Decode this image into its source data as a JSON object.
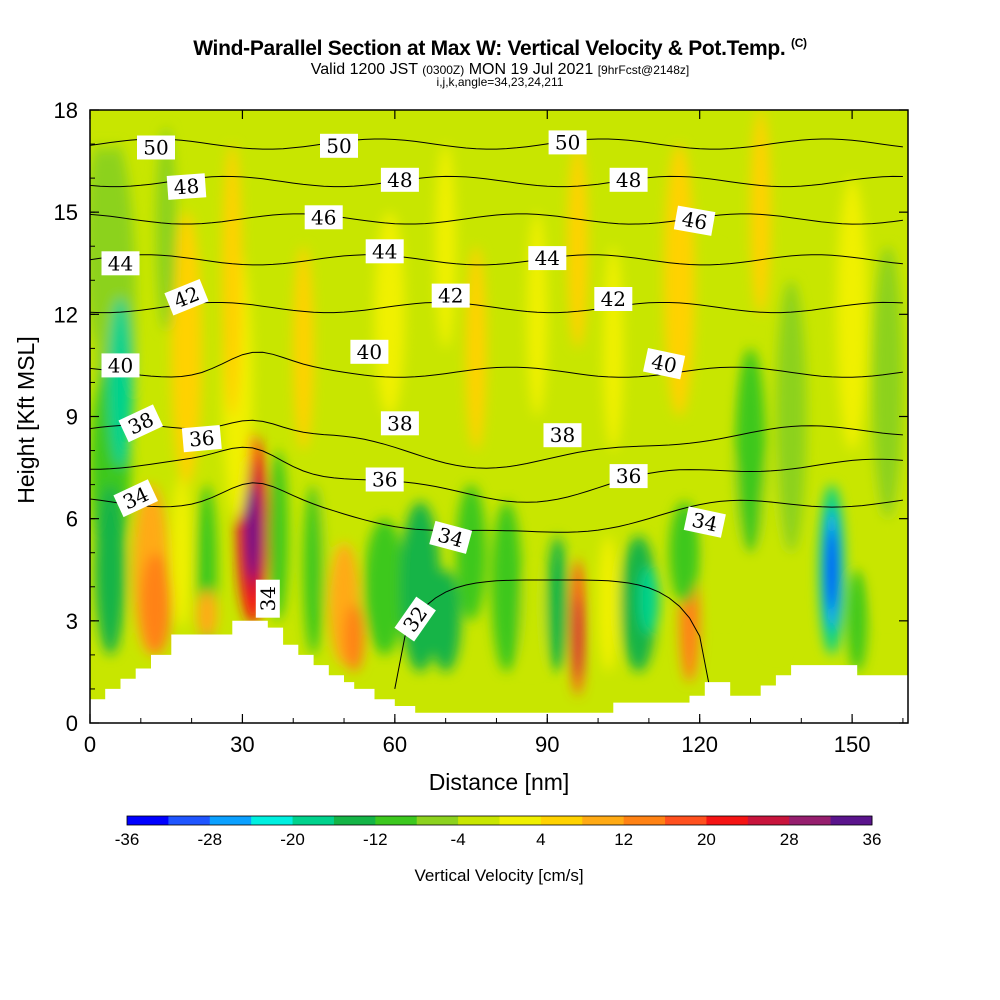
{
  "header": {
    "title": "Wind-Parallel Section at Max W: Vertical Velocity & Pot.Temp.",
    "copyright": "(C)",
    "valid_prefix": "Valid 1200 JST",
    "valid_utc": "(0300Z)",
    "valid_date": "MON 19 Jul 2021",
    "forecast": "[9hrFcst@2148z]",
    "indices": "i,j,k,angle=34,23,24,211"
  },
  "chart_data": {
    "type": "heatmap",
    "xlabel": "Distance [nm]",
    "ylabel": "Height [Kft MSL]",
    "xlim": [
      0,
      161
    ],
    "ylim": [
      0,
      18
    ],
    "xticks": [
      0,
      30,
      60,
      90,
      120,
      150
    ],
    "yticks": [
      0,
      3,
      6,
      9,
      12,
      15,
      18
    ],
    "colorbar": {
      "label": "Vertical Velocity [cm/s]",
      "ticks": [
        -36,
        -28,
        -20,
        -12,
        -4,
        4,
        12,
        20,
        28,
        36
      ],
      "colors": [
        "#0000ff",
        "#1f55ff",
        "#0aa0ff",
        "#00f0e0",
        "#00d28c",
        "#14b446",
        "#3cc81e",
        "#8cd21e",
        "#c8e600",
        "#f0f000",
        "#ffd200",
        "#ffaa14",
        "#ff8214",
        "#ff501e",
        "#f51414",
        "#c8143c",
        "#961e6e",
        "#5a148c"
      ]
    },
    "terrain_kft": [
      [
        0,
        0.7
      ],
      [
        3,
        0.7
      ],
      [
        3,
        1
      ],
      [
        6,
        1
      ],
      [
        6,
        1.3
      ],
      [
        9,
        1.3
      ],
      [
        9,
        1.6
      ],
      [
        12,
        1.6
      ],
      [
        12,
        2
      ],
      [
        16,
        2
      ],
      [
        16,
        2.6
      ],
      [
        28,
        2.6
      ],
      [
        28,
        3
      ],
      [
        35,
        3
      ],
      [
        35,
        2.8
      ],
      [
        38,
        2.8
      ],
      [
        38,
        2.3
      ],
      [
        41,
        2.3
      ],
      [
        41,
        2
      ],
      [
        44,
        2
      ],
      [
        44,
        1.7
      ],
      [
        47,
        1.7
      ],
      [
        47,
        1.4
      ],
      [
        50,
        1.4
      ],
      [
        50,
        1.2
      ],
      [
        52,
        1.2
      ],
      [
        52,
        1.0
      ],
      [
        56,
        1.0
      ],
      [
        56,
        0.7
      ],
      [
        60,
        0.7
      ],
      [
        60,
        0.5
      ],
      [
        64,
        0.5
      ],
      [
        64,
        0.3
      ],
      [
        103,
        0.3
      ],
      [
        103,
        0.6
      ],
      [
        118,
        0.6
      ],
      [
        118,
        0.8
      ],
      [
        121,
        0.8
      ],
      [
        121,
        1.2
      ],
      [
        126,
        1.2
      ],
      [
        126,
        0.8
      ],
      [
        132,
        0.8
      ],
      [
        132,
        1.1
      ],
      [
        135,
        1.1
      ],
      [
        135,
        1.4
      ],
      [
        138,
        1.4
      ],
      [
        138,
        1.7
      ],
      [
        151,
        1.7
      ],
      [
        151,
        1.4
      ],
      [
        161,
        1.4
      ]
    ],
    "theta_contours": [
      32,
      34,
      36,
      38,
      40,
      42,
      44,
      46,
      48,
      50
    ],
    "contour_labels": [
      {
        "text": "50",
        "x": 13,
        "y": 16.9,
        "angle": 0
      },
      {
        "text": "50",
        "x": 49,
        "y": 16.95,
        "angle": 0
      },
      {
        "text": "50",
        "x": 94,
        "y": 17.05,
        "angle": 0
      },
      {
        "text": "48",
        "x": 19,
        "y": 15.75,
        "angle": -4
      },
      {
        "text": "48",
        "x": 61,
        "y": 15.95,
        "angle": 0
      },
      {
        "text": "48",
        "x": 106,
        "y": 15.95,
        "angle": 0
      },
      {
        "text": "46",
        "x": 46,
        "y": 14.85,
        "angle": 0
      },
      {
        "text": "46",
        "x": 119,
        "y": 14.75,
        "angle": 10
      },
      {
        "text": "44",
        "x": 6,
        "y": 13.5,
        "angle": 0
      },
      {
        "text": "44",
        "x": 58,
        "y": 13.85,
        "angle": 0
      },
      {
        "text": "44",
        "x": 90,
        "y": 13.65,
        "angle": 0
      },
      {
        "text": "42",
        "x": 19,
        "y": 12.5,
        "angle": -22
      },
      {
        "text": "42",
        "x": 71,
        "y": 12.55,
        "angle": 0
      },
      {
        "text": "42",
        "x": 103,
        "y": 12.45,
        "angle": 0
      },
      {
        "text": "40",
        "x": 6,
        "y": 10.5,
        "angle": 0
      },
      {
        "text": "40",
        "x": 55,
        "y": 10.9,
        "angle": 0
      },
      {
        "text": "40",
        "x": 113,
        "y": 10.55,
        "angle": 12
      },
      {
        "text": "38",
        "x": 10,
        "y": 8.8,
        "angle": -25
      },
      {
        "text": "38",
        "x": 61,
        "y": 8.8,
        "angle": 0
      },
      {
        "text": "38",
        "x": 93,
        "y": 8.45,
        "angle": 0
      },
      {
        "text": "36",
        "x": 22,
        "y": 8.35,
        "angle": -5
      },
      {
        "text": "36",
        "x": 58,
        "y": 7.15,
        "angle": 0
      },
      {
        "text": "36",
        "x": 106,
        "y": 7.25,
        "angle": 0
      },
      {
        "text": "34",
        "x": 9,
        "y": 6.6,
        "angle": -25
      },
      {
        "text": "34",
        "x": 71,
        "y": 5.45,
        "angle": 15
      },
      {
        "text": "34",
        "x": 121,
        "y": 5.9,
        "angle": 12
      },
      {
        "text": "34",
        "x": 35,
        "y": 3.65,
        "angle": -90
      },
      {
        "text": "32",
        "x": 64,
        "y": 3.05,
        "angle": -55
      }
    ]
  }
}
